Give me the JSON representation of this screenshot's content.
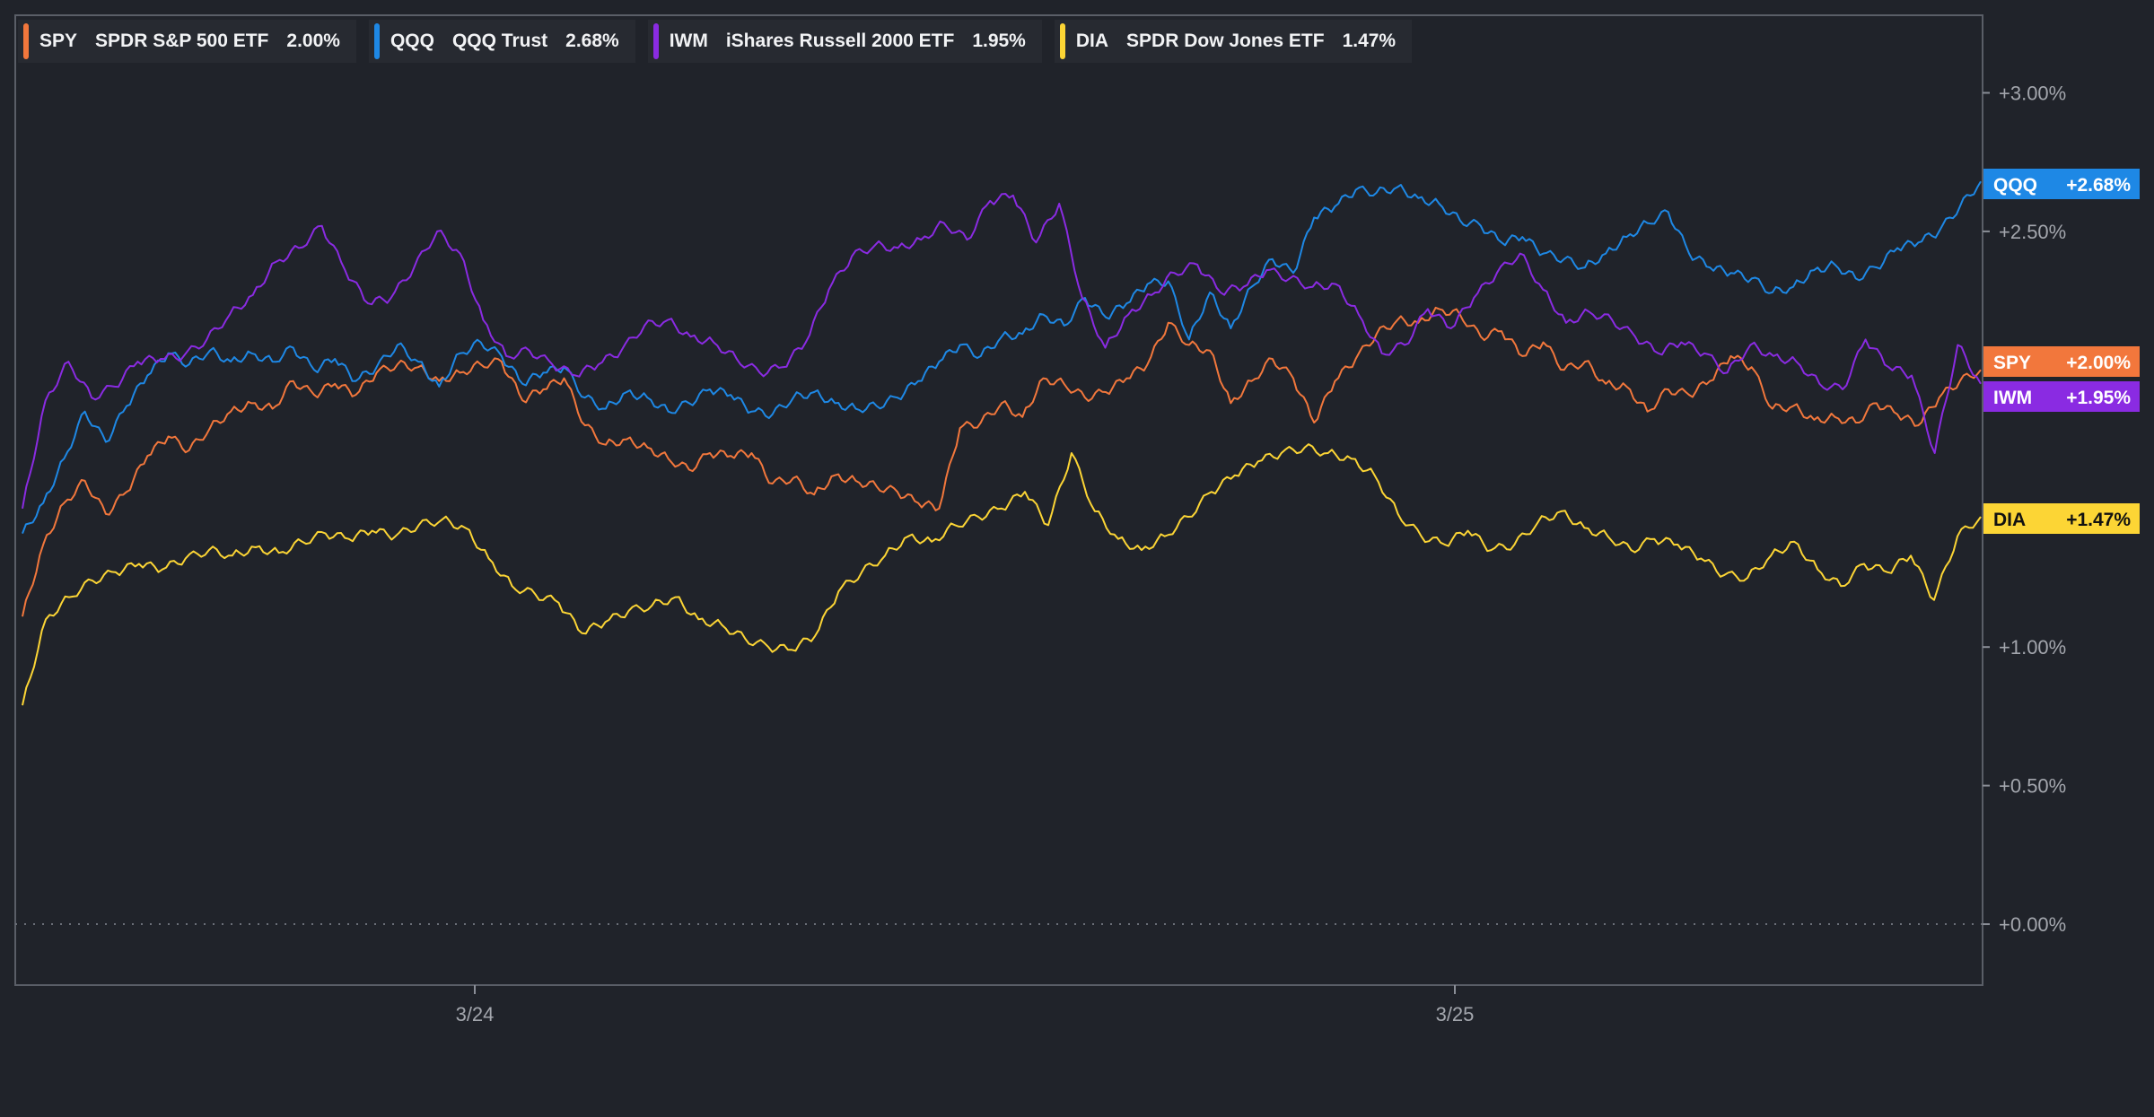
{
  "chart_data": {
    "type": "line",
    "y_unit": "percent change",
    "ylim": [
      -0.22,
      3.28
    ],
    "x_ticks": [
      "3/24",
      "3/25"
    ],
    "y_ticks": [
      "+3.00%",
      "+2.50%",
      "+1.00%",
      "+0.50%",
      "+0.00%"
    ],
    "y_tick_values": [
      3.0,
      2.5,
      1.0,
      0.5,
      0.0
    ],
    "legend_placement": "top-left",
    "grid": false,
    "series": [
      {
        "symbol": "SPY",
        "name": "SPDR S&P 500 ETF",
        "legend_value": "2.00%",
        "end_label": "+2.00%",
        "color": "#f2773c",
        "values": [
          1.11,
          1.37,
          1.52,
          1.6,
          1.48,
          1.56,
          1.69,
          1.76,
          1.71,
          1.79,
          1.85,
          1.88,
          1.86,
          1.96,
          1.91,
          1.95,
          1.91,
          1.99,
          2.02,
          2.01,
          1.96,
          1.99,
          2.02,
          2.03,
          1.89,
          1.93,
          1.97,
          1.8,
          1.73,
          1.75,
          1.72,
          1.68,
          1.64,
          1.7,
          1.69,
          1.7,
          1.59,
          1.61,
          1.55,
          1.62,
          1.6,
          1.58,
          1.56,
          1.52,
          1.5,
          1.79,
          1.81,
          1.88,
          1.83,
          1.97,
          1.95,
          1.9,
          1.92,
          1.97,
          2.02,
          2.17,
          2.09,
          2.07,
          1.88,
          1.96,
          2.04,
          1.97,
          1.81,
          1.96,
          2.04,
          2.13,
          2.18,
          2.17,
          2.22,
          2.2,
          2.12,
          2.14,
          2.05,
          2.1,
          2.0,
          2.03,
          1.95,
          1.94,
          1.85,
          1.93,
          1.91,
          1.96,
          2.05,
          2.01,
          1.86,
          1.87,
          1.82,
          1.83,
          1.81,
          1.88,
          1.84,
          1.8,
          1.9,
          1.96,
          2.0
        ]
      },
      {
        "symbol": "QQQ",
        "name": "QQQ Trust",
        "legend_value": "2.68%",
        "end_label": "+2.68%",
        "color": "#1e88e5",
        "values": [
          1.41,
          1.52,
          1.68,
          1.85,
          1.74,
          1.87,
          1.98,
          2.06,
          2.02,
          2.07,
          2.03,
          2.06,
          2.03,
          2.08,
          2.0,
          2.04,
          1.96,
          2.01,
          2.09,
          2.03,
          1.94,
          2.06,
          2.1,
          2.05,
          1.95,
          1.99,
          2.01,
          1.9,
          1.86,
          1.92,
          1.9,
          1.85,
          1.88,
          1.93,
          1.91,
          1.85,
          1.84,
          1.9,
          1.92,
          1.88,
          1.86,
          1.87,
          1.9,
          1.96,
          2.03,
          2.09,
          2.05,
          2.12,
          2.13,
          2.2,
          2.16,
          2.26,
          2.19,
          2.24,
          2.31,
          2.32,
          2.11,
          2.28,
          2.15,
          2.3,
          2.4,
          2.35,
          2.55,
          2.59,
          2.65,
          2.64,
          2.66,
          2.62,
          2.6,
          2.54,
          2.52,
          2.46,
          2.48,
          2.42,
          2.4,
          2.37,
          2.42,
          2.48,
          2.53,
          2.57,
          2.42,
          2.37,
          2.35,
          2.33,
          2.28,
          2.3,
          2.36,
          2.38,
          2.33,
          2.37,
          2.44,
          2.46,
          2.5,
          2.59,
          2.68
        ]
      },
      {
        "symbol": "IWM",
        "name": "iShares Russell 2000 ETF",
        "legend_value": "1.95%",
        "end_label": "+1.95%",
        "color": "#8a2be2",
        "values": [
          1.5,
          1.89,
          2.03,
          1.9,
          1.94,
          2.03,
          2.04,
          2.05,
          2.11,
          2.2,
          2.27,
          2.39,
          2.44,
          2.52,
          2.36,
          2.24,
          2.26,
          2.37,
          2.5,
          2.42,
          2.18,
          2.05,
          2.07,
          2.02,
          1.98,
          2.02,
          2.07,
          2.16,
          2.18,
          2.12,
          2.1,
          2.04,
          1.99,
          2.01,
          2.1,
          2.29,
          2.41,
          2.45,
          2.44,
          2.47,
          2.53,
          2.47,
          2.61,
          2.63,
          2.46,
          2.6,
          2.26,
          2.08,
          2.2,
          2.27,
          2.35,
          2.38,
          2.28,
          2.3,
          2.36,
          2.33,
          2.3,
          2.31,
          2.2,
          2.06,
          2.09,
          2.22,
          2.15,
          2.26,
          2.35,
          2.42,
          2.29,
          2.17,
          2.21,
          2.18,
          2.12,
          2.06,
          2.1,
          2.06,
          1.99,
          2.09,
          2.05,
          2.03,
          1.95,
          1.93,
          2.11,
          2.01,
          1.98,
          1.7,
          2.09,
          1.95
        ]
      },
      {
        "symbol": "DIA",
        "name": "SPDR Dow Jones ETF",
        "legend_value": "1.47%",
        "end_label": "+1.47%",
        "color": "#fcd535",
        "values": [
          0.79,
          1.1,
          1.18,
          1.24,
          1.27,
          1.3,
          1.28,
          1.32,
          1.35,
          1.33,
          1.36,
          1.34,
          1.38,
          1.41,
          1.39,
          1.42,
          1.4,
          1.44,
          1.46,
          1.43,
          1.32,
          1.22,
          1.19,
          1.16,
          1.05,
          1.09,
          1.13,
          1.15,
          1.18,
          1.1,
          1.08,
          1.03,
          1.0,
          0.99,
          1.04,
          1.2,
          1.27,
          1.33,
          1.4,
          1.38,
          1.44,
          1.47,
          1.5,
          1.56,
          1.44,
          1.7,
          1.49,
          1.39,
          1.35,
          1.4,
          1.47,
          1.56,
          1.62,
          1.67,
          1.7,
          1.72,
          1.7,
          1.68,
          1.62,
          1.48,
          1.4,
          1.37,
          1.42,
          1.35,
          1.37,
          1.45,
          1.49,
          1.43,
          1.4,
          1.35,
          1.39,
          1.37,
          1.32,
          1.26,
          1.25,
          1.33,
          1.38,
          1.28,
          1.22,
          1.3,
          1.27,
          1.33,
          1.17,
          1.4,
          1.47
        ]
      }
    ]
  }
}
